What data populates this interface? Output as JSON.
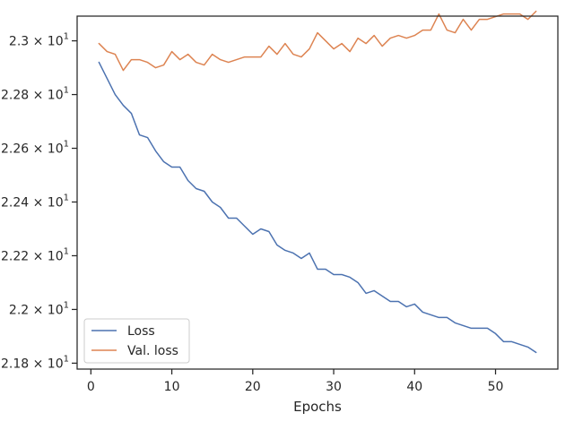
{
  "chart_data": {
    "type": "line",
    "title": "",
    "xlabel": "Epochs",
    "ylabel": "",
    "xlim": [
      -1.7,
      57.7
    ],
    "ylim": [
      21.778,
      23.092
    ],
    "x_ticks": [
      0,
      10,
      20,
      30,
      40,
      50
    ],
    "x_tick_labels": [
      "0",
      "10",
      "20",
      "30",
      "40",
      "50"
    ],
    "y_ticks": [
      21.8,
      22.0,
      22.2,
      22.4,
      22.6,
      22.8,
      23.0
    ],
    "y_tick_labels": [
      {
        "base": "2.18 × 10",
        "exp": "1"
      },
      {
        "base": "2.2 × 10",
        "exp": "1"
      },
      {
        "base": "2.22 × 10",
        "exp": "1"
      },
      {
        "base": "2.24 × 10",
        "exp": "1"
      },
      {
        "base": "2.26 × 10",
        "exp": "1"
      },
      {
        "base": "2.28 × 10",
        "exp": "1"
      },
      {
        "base": "2.3 × 10",
        "exp": "1"
      }
    ],
    "grid": false,
    "legend_position": "lower-left",
    "x": [
      1,
      2,
      3,
      4,
      5,
      6,
      7,
      8,
      9,
      10,
      11,
      12,
      13,
      14,
      15,
      16,
      17,
      18,
      19,
      20,
      21,
      22,
      23,
      24,
      25,
      26,
      27,
      28,
      29,
      30,
      31,
      32,
      33,
      34,
      35,
      36,
      37,
      38,
      39,
      40,
      41,
      42,
      43,
      44,
      45,
      46,
      47,
      48,
      49,
      50,
      51,
      52,
      53,
      54,
      55
    ],
    "series": [
      {
        "name": "Loss",
        "color": "#4c72b0",
        "values": [
          22.92,
          22.86,
          22.8,
          22.76,
          22.73,
          22.65,
          22.64,
          22.59,
          22.55,
          22.53,
          22.53,
          22.48,
          22.45,
          22.44,
          22.4,
          22.38,
          22.34,
          22.34,
          22.31,
          22.28,
          22.3,
          22.29,
          22.24,
          22.22,
          22.21,
          22.19,
          22.21,
          22.15,
          22.15,
          22.13,
          22.13,
          22.12,
          22.1,
          22.06,
          22.07,
          22.05,
          22.03,
          22.03,
          22.01,
          22.02,
          21.99,
          21.98,
          21.97,
          21.97,
          21.95,
          21.94,
          21.93,
          21.93,
          21.93,
          21.91,
          21.88,
          21.88,
          21.87,
          21.86,
          21.84
        ]
      },
      {
        "name": "Val. loss",
        "color": "#dd8452",
        "values": [
          22.99,
          22.96,
          22.95,
          22.89,
          22.93,
          22.93,
          22.92,
          22.9,
          22.91,
          22.96,
          22.93,
          22.95,
          22.92,
          22.91,
          22.95,
          22.93,
          22.92,
          22.93,
          22.94,
          22.94,
          22.94,
          22.98,
          22.95,
          22.99,
          22.95,
          22.94,
          22.97,
          23.03,
          23.0,
          22.97,
          22.99,
          22.96,
          23.01,
          22.99,
          23.02,
          22.98,
          23.01,
          23.02,
          23.01,
          23.02,
          23.04,
          23.04,
          23.1,
          23.04,
          23.03,
          23.08,
          23.04,
          23.08,
          23.08,
          23.09,
          23.1,
          23.1,
          23.1,
          23.08,
          23.11
        ]
      }
    ]
  }
}
